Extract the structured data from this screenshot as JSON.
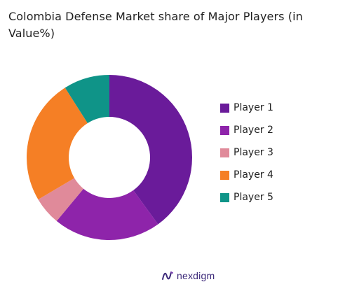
{
  "chart_data": {
    "type": "pie",
    "title": "Colombia Defense Market share of Major Players (in Value%)",
    "donut": true,
    "categories": [
      "Player 1",
      "Player 2",
      "Player 3",
      "Player 4",
      "Player 5"
    ],
    "values": [
      40,
      21,
      5.5,
      24.5,
      9
    ],
    "colors": [
      "#6a1b9a",
      "#8e24aa",
      "#e08a9a",
      "#f57f25",
      "#0f9488"
    ],
    "legend_position": "right"
  },
  "brand": {
    "name": "nexdigm",
    "icon": "nexdigm-logo-icon"
  }
}
